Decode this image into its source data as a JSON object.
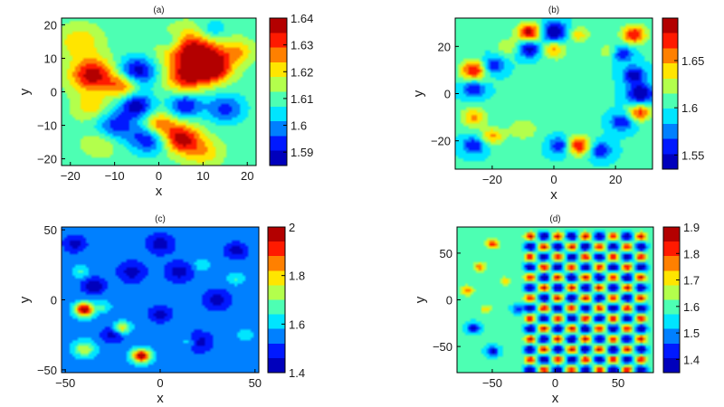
{
  "chart_data": [
    {
      "type": "heatmap",
      "title": "(a)",
      "xlabel": "x",
      "ylabel": "y",
      "xlim": [
        -22,
        22
      ],
      "ylim": [
        -22,
        22
      ],
      "x_ticks": [
        -20,
        -10,
        0,
        10,
        20
      ],
      "y_ticks": [
        -20,
        -10,
        0,
        10,
        20
      ],
      "colorbar": {
        "min": 1.585,
        "max": 1.64,
        "ticks": [
          1.59,
          1.6,
          1.61,
          1.62,
          1.63,
          1.64
        ],
        "tick_labels": [
          "1.59",
          "1.6",
          "1.61",
          "1.62",
          "1.63",
          "1.64"
        ]
      },
      "field": {
        "base": 1.61,
        "blobs": [
          [
            -15,
            5,
            3.5,
            0.028
          ],
          [
            -10,
            -10,
            3.5,
            -0.018
          ],
          [
            -5,
            6,
            3.0,
            -0.024
          ],
          [
            -5,
            -4,
            2.5,
            -0.022
          ],
          [
            -8,
            2,
            2.5,
            0.02
          ],
          [
            5,
            -14,
            3.0,
            0.028
          ],
          [
            0,
            -10,
            2.5,
            0.02
          ],
          [
            -2,
            -14,
            3.0,
            -0.02
          ],
          [
            8,
            12,
            4.5,
            0.03
          ],
          [
            12,
            7,
            3.0,
            0.028
          ],
          [
            6,
            4,
            3.0,
            0.02
          ],
          [
            6,
            -4,
            2.5,
            -0.02
          ],
          [
            15,
            -5,
            3.0,
            -0.016
          ],
          [
            12,
            18,
            2.5,
            -0.012
          ],
          [
            -15,
            -5,
            3.0,
            0.012
          ],
          [
            18,
            12,
            2.5,
            0.012
          ],
          [
            -18,
            15,
            3.5,
            0.012
          ],
          [
            3,
            15,
            2.0,
            -0.01
          ],
          [
            -13,
            -15,
            3.0,
            0.01
          ],
          [
            10,
            -18,
            3.0,
            0.012
          ]
        ]
      }
    },
    {
      "type": "heatmap",
      "title": "(b)",
      "xlabel": "x",
      "ylabel": "y",
      "xlim": [
        -32,
        32
      ],
      "ylim": [
        -32,
        32
      ],
      "x_ticks": [
        -20,
        0,
        20
      ],
      "y_ticks": [
        -20,
        0,
        20
      ],
      "colorbar": {
        "min": 1.535,
        "max": 1.695,
        "ticks": [
          1.55,
          1.6,
          1.65
        ],
        "tick_labels": [
          "1.55",
          "1.6",
          "1.65"
        ]
      },
      "field": {
        "base": 1.6,
        "blobs": [
          [
            -8,
            26,
            2.8,
            0.09
          ],
          [
            -8,
            19,
            2.5,
            -0.06
          ],
          [
            0,
            26,
            3.0,
            -0.07
          ],
          [
            0,
            19,
            2.5,
            0.05
          ],
          [
            8,
            25,
            2.5,
            0.04
          ],
          [
            26,
            25,
            2.8,
            0.08
          ],
          [
            22,
            17,
            2.5,
            -0.05
          ],
          [
            -26,
            10,
            3.0,
            0.08
          ],
          [
            -26,
            2,
            2.5,
            -0.05
          ],
          [
            -20,
            12,
            2.5,
            -0.05
          ],
          [
            -26,
            -10,
            3.0,
            0.05
          ],
          [
            26,
            8,
            2.5,
            -0.06
          ],
          [
            28,
            0,
            3.0,
            -0.07
          ],
          [
            28,
            -8,
            2.5,
            0.07
          ],
          [
            22,
            -12,
            2.5,
            -0.05
          ],
          [
            -26,
            -22,
            2.5,
            -0.05
          ],
          [
            -20,
            -18,
            2.5,
            0.05
          ],
          [
            8,
            -22,
            2.8,
            0.08
          ],
          [
            2,
            -22,
            2.5,
            -0.05
          ],
          [
            15,
            -24,
            2.5,
            -0.05
          ],
          [
            -10,
            -15,
            4.0,
            0.025
          ],
          [
            5,
            10,
            5.0,
            0.015
          ],
          [
            -15,
            20,
            2.5,
            0.03
          ],
          [
            18,
            18,
            2.5,
            0.03
          ]
        ]
      }
    },
    {
      "type": "heatmap",
      "title": "(c)",
      "xlabel": "x",
      "ylabel": "y",
      "xlim": [
        -52,
        52
      ],
      "ylim": [
        -52,
        52
      ],
      "x_ticks": [
        -50,
        0,
        50
      ],
      "y_ticks": [
        -50,
        0,
        50
      ],
      "colorbar": {
        "min": 1.4,
        "max": 2.0,
        "ticks": [
          1.4,
          1.6,
          1.8,
          2.0
        ],
        "tick_labels": [
          "1.4",
          "1.6",
          "1.8",
          "2"
        ]
      },
      "field": {
        "base": 1.55,
        "blobs": [
          [
            -40,
            -7,
            3.5,
            0.45
          ],
          [
            -10,
            -40,
            3.5,
            0.45
          ],
          [
            -20,
            -20,
            3.0,
            0.25
          ],
          [
            -40,
            -35,
            4.0,
            0.2
          ],
          [
            -35,
            10,
            4.0,
            -0.15
          ],
          [
            -15,
            20,
            5.0,
            -0.12
          ],
          [
            10,
            20,
            5.0,
            -0.12
          ],
          [
            30,
            0,
            5.0,
            -0.12
          ],
          [
            -25,
            -25,
            4.0,
            -0.12
          ],
          [
            20,
            -30,
            5.0,
            -0.12
          ],
          [
            40,
            35,
            4.0,
            -0.12
          ],
          [
            -45,
            40,
            4.0,
            -0.12
          ],
          [
            0,
            40,
            5.0,
            -0.12
          ],
          [
            0,
            -10,
            4.0,
            -0.12
          ],
          [
            -42,
            20,
            3.0,
            0.1
          ],
          [
            40,
            15,
            3.0,
            0.1
          ],
          [
            22,
            25,
            3.0,
            0.1
          ],
          [
            15,
            -30,
            3.0,
            0.1
          ],
          [
            45,
            -25,
            3.0,
            0.08
          ],
          [
            -30,
            -5,
            3.0,
            0.1
          ]
        ]
      }
    },
    {
      "type": "heatmap",
      "title": "(d)",
      "xlabel": "x",
      "ylabel": "y",
      "xlim": [
        -78,
        78
      ],
      "ylim": [
        -78,
        78
      ],
      "x_ticks": [
        -50,
        0,
        50
      ],
      "y_ticks": [
        -50,
        0,
        50
      ],
      "colorbar": {
        "min": 1.35,
        "max": 1.9,
        "ticks": [
          1.4,
          1.5,
          1.6,
          1.7,
          1.8,
          1.9
        ],
        "tick_labels": [
          "1.4",
          "1.5",
          "1.6",
          "1.7",
          "1.8",
          "1.9"
        ]
      },
      "field": {
        "base": 1.58,
        "lattice": {
          "x0": -20,
          "x1": 75,
          "y0": -75,
          "y1": 75,
          "step": 11,
          "sigma": 3.0,
          "amp": 0.28
        },
        "blobs": [
          [
            -50,
            60,
            3.5,
            0.25
          ],
          [
            -60,
            35,
            3.5,
            0.2
          ],
          [
            -70,
            10,
            3.5,
            0.2
          ],
          [
            -65,
            -30,
            3.5,
            -0.2
          ],
          [
            -50,
            -55,
            3.5,
            -0.2
          ],
          [
            -40,
            20,
            3.0,
            0.15
          ],
          [
            -30,
            -10,
            3.0,
            -0.15
          ],
          [
            -55,
            -10,
            3.0,
            0.15
          ]
        ]
      }
    }
  ]
}
